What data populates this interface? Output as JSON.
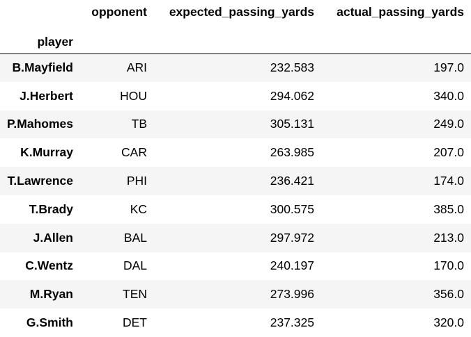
{
  "table": {
    "index_name": "player",
    "columns": [
      "opponent",
      "expected_passing_yards",
      "actual_passing_yards"
    ],
    "rows": [
      {
        "player": "B.Mayfield",
        "opponent": "ARI",
        "expected_passing_yards": "232.583",
        "actual_passing_yards": "197.0"
      },
      {
        "player": "J.Herbert",
        "opponent": "HOU",
        "expected_passing_yards": "294.062",
        "actual_passing_yards": "340.0"
      },
      {
        "player": "P.Mahomes",
        "opponent": "TB",
        "expected_passing_yards": "305.131",
        "actual_passing_yards": "249.0"
      },
      {
        "player": "K.Murray",
        "opponent": "CAR",
        "expected_passing_yards": "263.985",
        "actual_passing_yards": "207.0"
      },
      {
        "player": "T.Lawrence",
        "opponent": "PHI",
        "expected_passing_yards": "236.421",
        "actual_passing_yards": "174.0"
      },
      {
        "player": "T.Brady",
        "opponent": "KC",
        "expected_passing_yards": "300.575",
        "actual_passing_yards": "385.0"
      },
      {
        "player": "J.Allen",
        "opponent": "BAL",
        "expected_passing_yards": "297.972",
        "actual_passing_yards": "213.0"
      },
      {
        "player": "C.Wentz",
        "opponent": "DAL",
        "expected_passing_yards": "240.197",
        "actual_passing_yards": "170.0"
      },
      {
        "player": "M.Ryan",
        "opponent": "TEN",
        "expected_passing_yards": "273.996",
        "actual_passing_yards": "356.0"
      },
      {
        "player": "G.Smith",
        "opponent": "DET",
        "expected_passing_yards": "237.325",
        "actual_passing_yards": "320.0"
      }
    ]
  },
  "colors": {
    "text": "#000000",
    "stripe": "#f5f5f5",
    "background": "#ffffff"
  }
}
